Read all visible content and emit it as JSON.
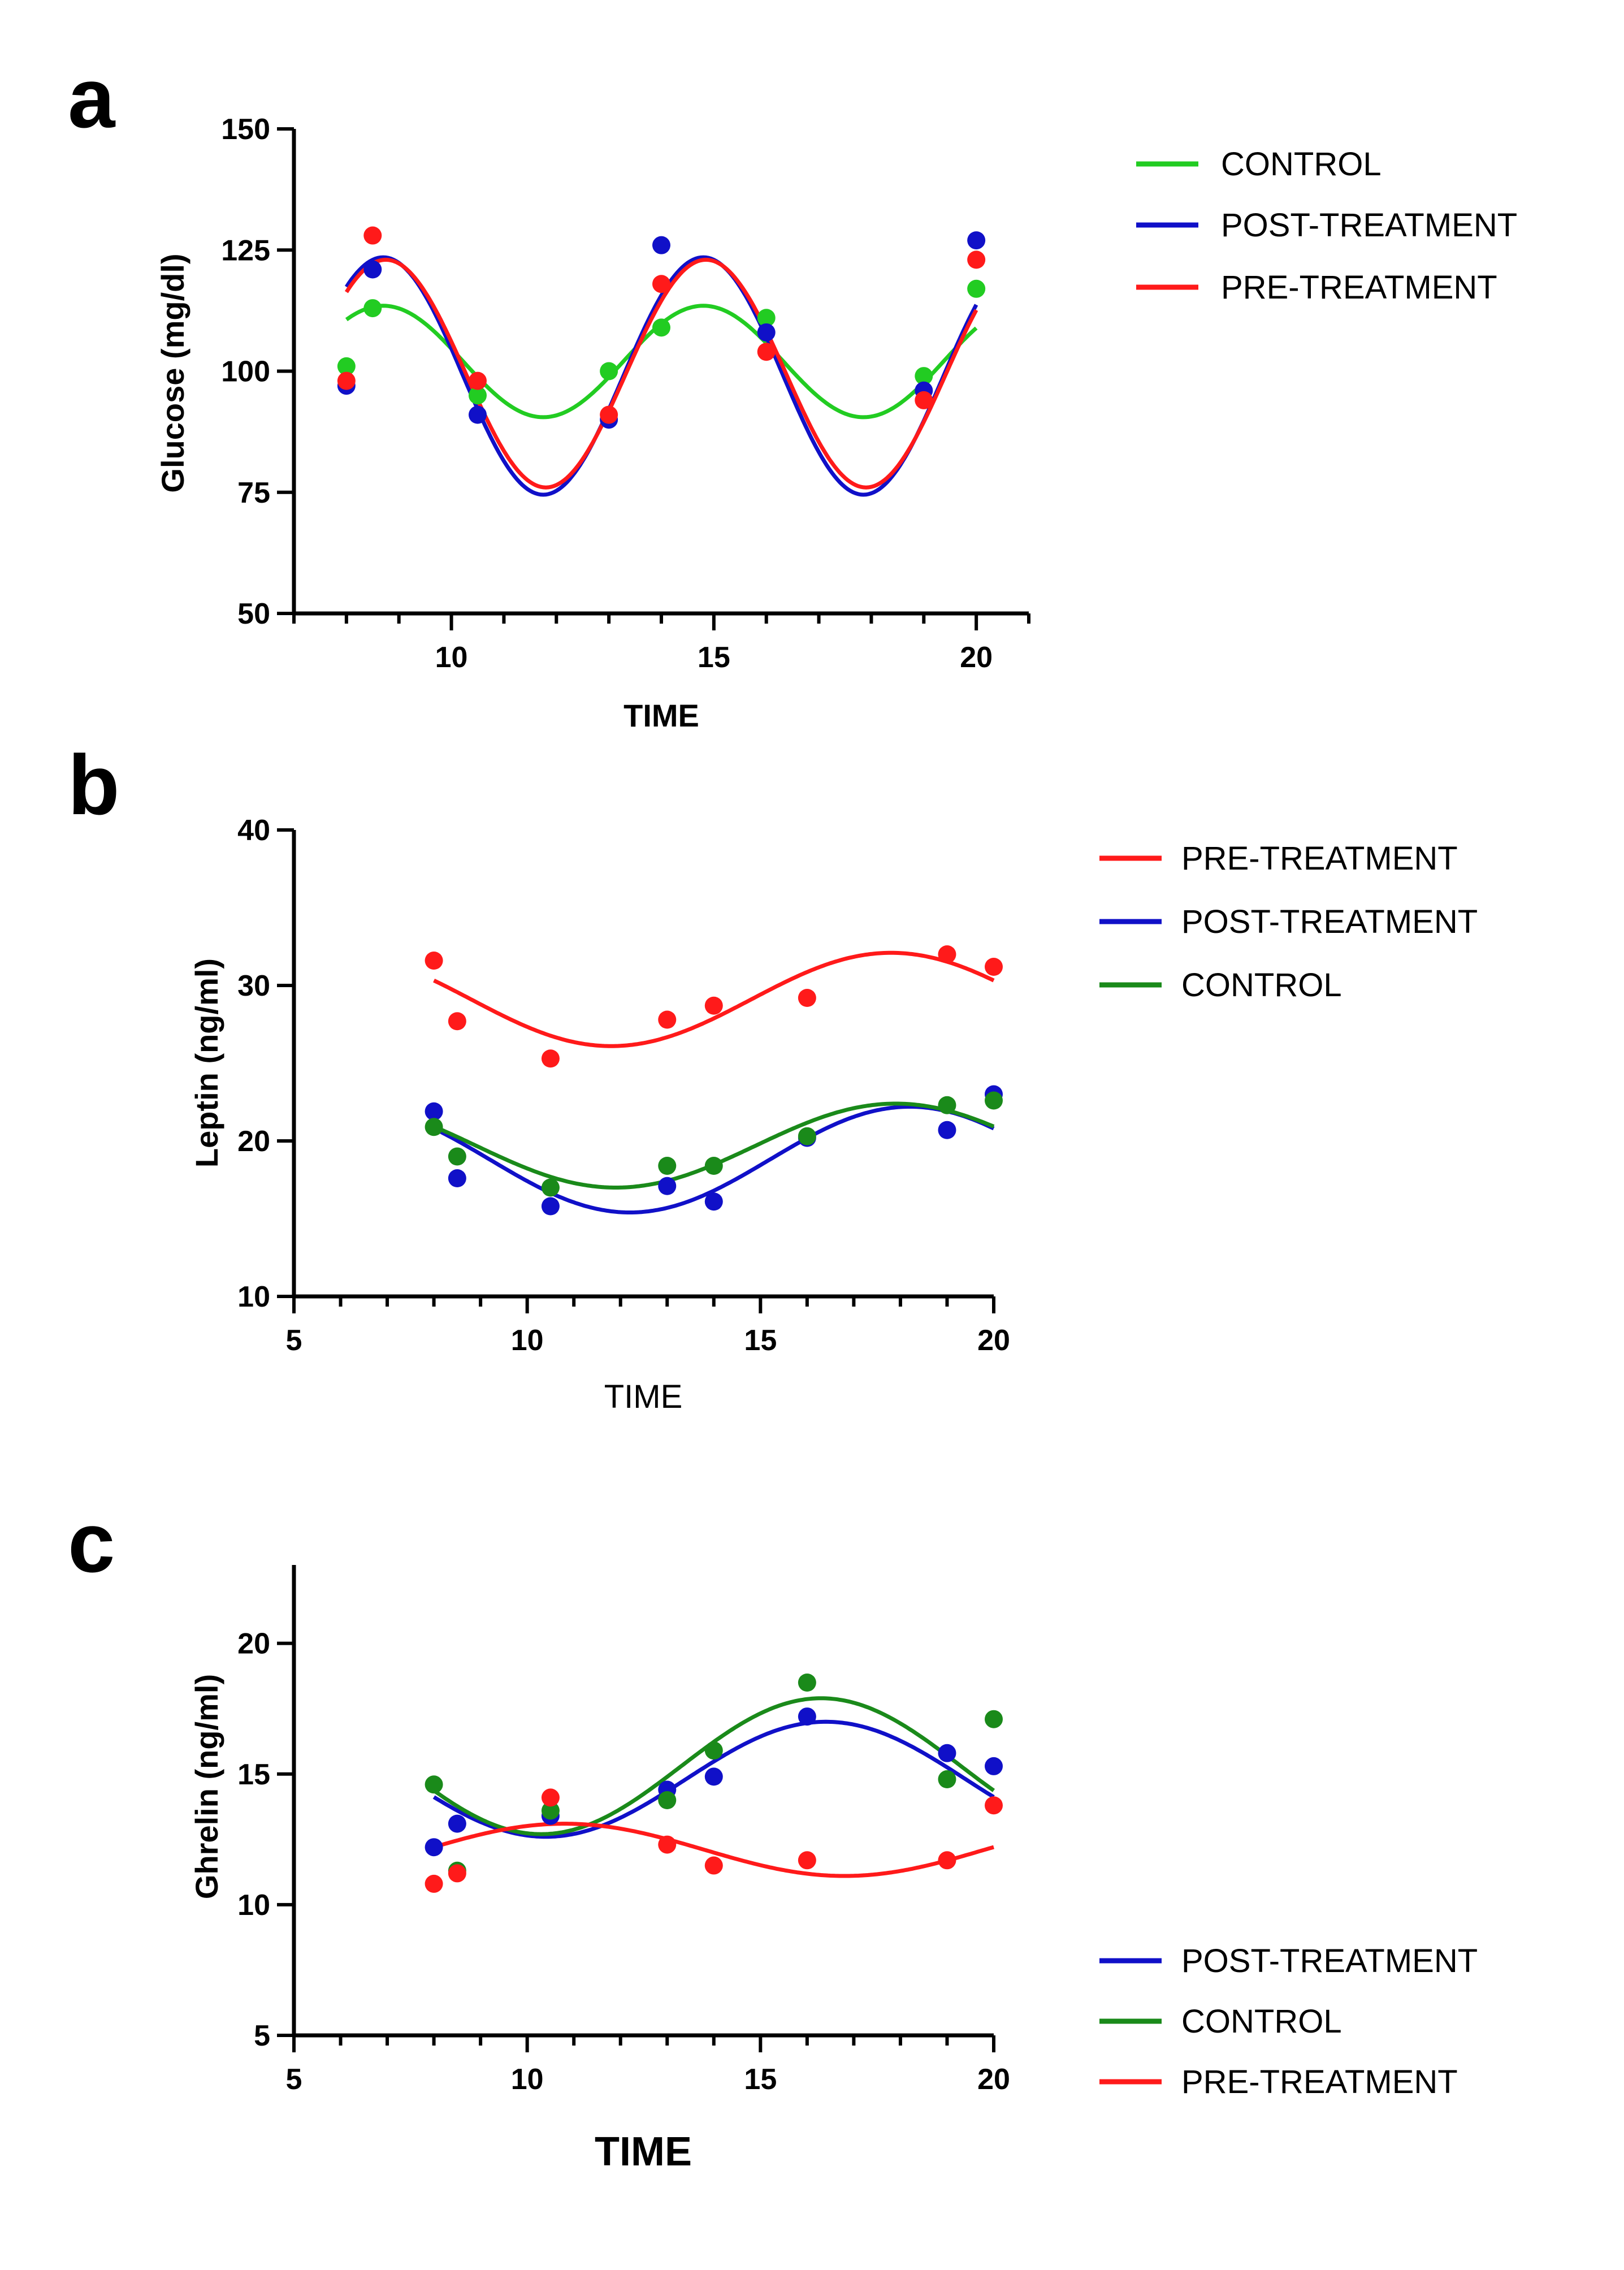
{
  "colors": {
    "control_light": "#22cc22",
    "control_dark": "#1a8a1a",
    "post": "#1010c8",
    "pre": "#ff1a1a"
  },
  "chart_data": [
    {
      "panel": "a",
      "type": "scatter",
      "xlabel": "TIME",
      "ylabel": "Glucose (mg/dl)",
      "xlim": [
        7.0,
        21.0
      ],
      "ylim": [
        50,
        150
      ],
      "xticks": [
        10,
        15,
        20
      ],
      "yticks": [
        50,
        75,
        100,
        125,
        150
      ],
      "legend": [
        "CONTROL",
        "POST-TREATMENT",
        "PRE-TREATMENT"
      ],
      "series": [
        {
          "name": "CONTROL",
          "color_key": "control_light",
          "points": [
            [
              8,
              101
            ],
            [
              8.5,
              113
            ],
            [
              10.5,
              95
            ],
            [
              13,
              100
            ],
            [
              14,
              109
            ],
            [
              16,
              111
            ],
            [
              19,
              99
            ],
            [
              20,
              117
            ]
          ],
          "fit": {
            "mesor": 102,
            "amp": 11.5,
            "period": 6.1,
            "peak": 8.7,
            "from": 8,
            "to": 20
          }
        },
        {
          "name": "POST-TREATMENT",
          "color_key": "post",
          "points": [
            [
              8,
              97
            ],
            [
              8.5,
              121
            ],
            [
              10.5,
              91
            ],
            [
              13,
              90
            ],
            [
              14,
              126
            ],
            [
              16,
              108
            ],
            [
              19,
              96
            ],
            [
              20,
              127
            ]
          ],
          "fit": {
            "mesor": 99,
            "amp": 24.5,
            "period": 6.1,
            "peak": 8.7,
            "from": 8,
            "to": 20
          }
        },
        {
          "name": "PRE-TREATMENT",
          "color_key": "pre",
          "points": [
            [
              8,
              98
            ],
            [
              8.5,
              128
            ],
            [
              10.5,
              98
            ],
            [
              13,
              91
            ],
            [
              14,
              118
            ],
            [
              16,
              104
            ],
            [
              19,
              94
            ],
            [
              20,
              123
            ]
          ],
          "fit": {
            "mesor": 99.5,
            "amp": 23.5,
            "period": 6.1,
            "peak": 8.75,
            "from": 8,
            "to": 20
          }
        }
      ]
    },
    {
      "panel": "b",
      "type": "scatter",
      "xlabel": "TIME",
      "ylabel": "Leptin (ng/ml)",
      "xlim": [
        5,
        20
      ],
      "ylim": [
        10,
        40
      ],
      "xticks": [
        5,
        10,
        15,
        20
      ],
      "yticks": [
        10,
        20,
        30,
        40
      ],
      "legend": [
        "PRE-TREATMENT",
        "POST-TREATMENT",
        "CONTROL"
      ],
      "series": [
        {
          "name": "PRE-TREATMENT",
          "color_key": "pre",
          "points": [
            [
              8,
              31.6
            ],
            [
              8.5,
              27.7
            ],
            [
              10.5,
              25.3
            ],
            [
              13,
              27.8
            ],
            [
              14,
              28.7
            ],
            [
              16,
              29.2
            ],
            [
              19,
              32.0
            ],
            [
              20,
              31.2
            ]
          ],
          "fit": {
            "mesor": 29.1,
            "amp": 3.0,
            "period": 12,
            "peak": 17.8,
            "from": 8,
            "to": 20
          }
        },
        {
          "name": "POST-TREATMENT",
          "color_key": "post",
          "points": [
            [
              8,
              21.9
            ],
            [
              8.5,
              17.6
            ],
            [
              10.5,
              15.8
            ],
            [
              13,
              17.1
            ],
            [
              14,
              16.1
            ],
            [
              16,
              20.2
            ],
            [
              19,
              20.7
            ],
            [
              20,
              23.0
            ]
          ],
          "fit": {
            "mesor": 18.8,
            "amp": 3.4,
            "period": 12,
            "peak": 18.2,
            "from": 8,
            "to": 20
          }
        },
        {
          "name": "CONTROL",
          "color_key": "control_dark",
          "points": [
            [
              8,
              20.9
            ],
            [
              8.5,
              19.0
            ],
            [
              10.5,
              17.0
            ],
            [
              13,
              18.4
            ],
            [
              14,
              18.4
            ],
            [
              16,
              20.3
            ],
            [
              19,
              22.3
            ],
            [
              20,
              22.6
            ]
          ],
          "fit": {
            "mesor": 19.7,
            "amp": 2.7,
            "period": 12,
            "peak": 17.9,
            "from": 8,
            "to": 20
          }
        }
      ]
    },
    {
      "panel": "c",
      "type": "scatter",
      "xlabel": "TIME",
      "ylabel": "Ghrelin (ng/ml)",
      "xlim": [
        5,
        20
      ],
      "ylim": [
        5,
        23
      ],
      "xticks": [
        5,
        10,
        15,
        20
      ],
      "yticks": [
        5,
        10,
        15,
        20
      ],
      "legend": [
        "POST-TREATMENT",
        "CONTROL",
        "PRE-TREATMENT"
      ],
      "series": [
        {
          "name": "POST-TREATMENT",
          "color_key": "post",
          "points": [
            [
              8,
              12.2
            ],
            [
              8.5,
              13.1
            ],
            [
              10.5,
              13.4
            ],
            [
              13,
              14.4
            ],
            [
              14,
              14.9
            ],
            [
              16,
              17.2
            ],
            [
              19,
              15.8
            ],
            [
              20,
              15.3
            ]
          ],
          "fit": {
            "mesor": 14.8,
            "amp": 2.2,
            "period": 12,
            "peak": 16.4,
            "from": 8,
            "to": 20
          }
        },
        {
          "name": "CONTROL",
          "color_key": "control_dark",
          "points": [
            [
              8,
              14.6
            ],
            [
              8.5,
              11.3
            ],
            [
              10.5,
              13.6
            ],
            [
              13,
              14.0
            ],
            [
              14,
              15.9
            ],
            [
              16,
              18.5
            ],
            [
              19,
              14.8
            ],
            [
              20,
              17.1
            ]
          ],
          "fit": {
            "mesor": 15.3,
            "amp": 2.6,
            "period": 12,
            "peak": 16.3,
            "from": 8,
            "to": 20
          }
        },
        {
          "name": "PRE-TREATMENT",
          "color_key": "pre",
          "points": [
            [
              8,
              10.8
            ],
            [
              8.5,
              11.2
            ],
            [
              10.5,
              14.1
            ],
            [
              13,
              12.3
            ],
            [
              14,
              11.5
            ],
            [
              16,
              11.7
            ],
            [
              19,
              11.7
            ],
            [
              20,
              13.8
            ]
          ],
          "fit": {
            "mesor": 12.1,
            "amp": 1.0,
            "period": 12,
            "peak": 10.8,
            "from": 8,
            "to": 20
          }
        }
      ]
    }
  ]
}
